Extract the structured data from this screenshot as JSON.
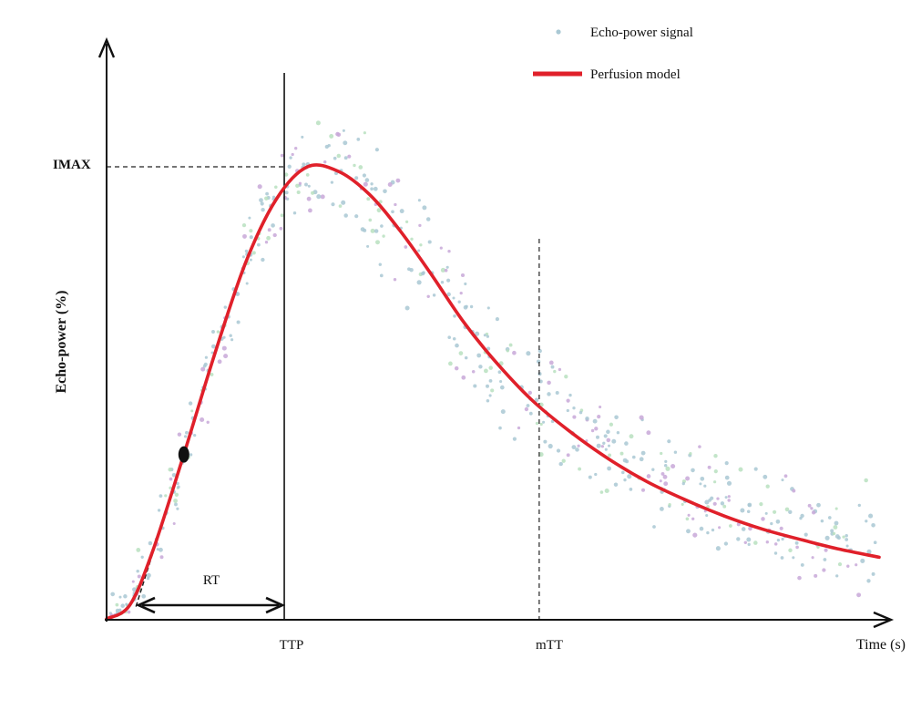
{
  "chart_data": {
    "type": "line",
    "title": "",
    "xlabel": "Time (s)",
    "ylabel": "Echo-power (%)",
    "y_tick_labels": [
      "IMAX"
    ],
    "x_tick_labels": [
      "TTP",
      "mTT"
    ],
    "grid": false,
    "legend": {
      "position": "top-right",
      "items": [
        {
          "label": "Echo-power signal",
          "kind": "scatter",
          "color": "#a9c8d4"
        },
        {
          "label": "Perfusion model",
          "kind": "line",
          "color": "#e0202a"
        }
      ]
    },
    "annotations": {
      "rt_label": "RT"
    },
    "series": [
      {
        "name": "Perfusion model",
        "color": "#e0202a",
        "x": [
          0,
          3,
          6,
          10,
          14,
          18,
          22,
          26,
          30,
          34,
          38,
          42,
          46,
          50,
          55,
          60,
          65,
          70,
          75,
          80,
          85,
          90,
          95,
          100
        ],
        "y": [
          0,
          3,
          15,
          36,
          58,
          78,
          92,
          99,
          98,
          93,
          85,
          75.5,
          65.5,
          57,
          48,
          41,
          35,
          30,
          26,
          22.5,
          19.6,
          17.3,
          15.2,
          13.5
        ]
      }
    ],
    "signal_color": "#a9c8d4",
    "signal_accent_colors": [
      "#c8a8d8",
      "#b8e0c0"
    ],
    "markers": {
      "imax": 99,
      "ttp": 23,
      "mtt": 56
    }
  }
}
